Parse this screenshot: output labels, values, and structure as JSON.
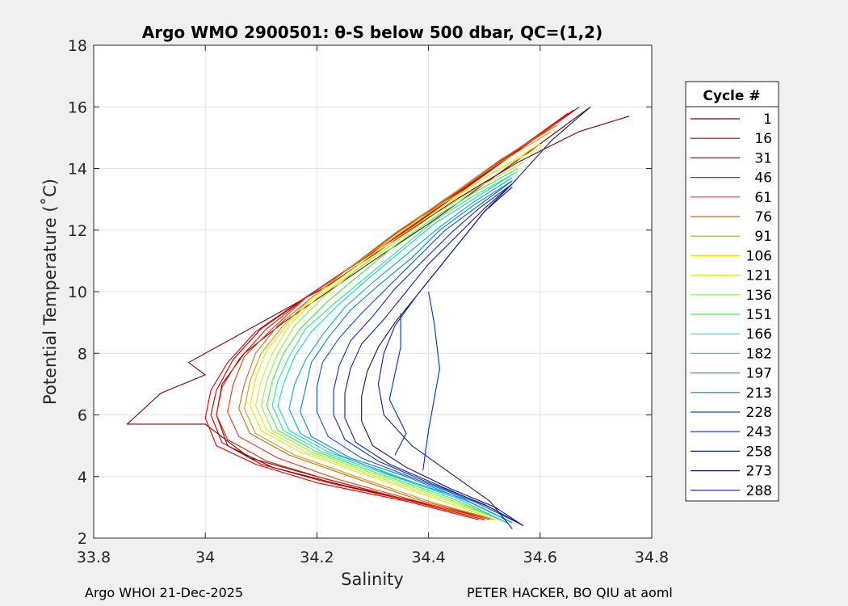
{
  "chart_data": {
    "type": "line",
    "title": "Argo WMO 2900501: θ-S below 500 dbar,  QC=(1,2)",
    "xlabel": "Salinity",
    "ylabel": "Potential Temperature (˚C)",
    "xlim": [
      33.8,
      34.8
    ],
    "ylim": [
      2,
      18
    ],
    "xticks": [
      "33.8",
      "34",
      "34.2",
      "34.4",
      "34.6",
      "34.8"
    ],
    "yticks": [
      "2",
      "4",
      "6",
      "8",
      "10",
      "12",
      "14",
      "16",
      "18"
    ],
    "grid": true,
    "legend": {
      "title": "Cycle #",
      "placement": "outside-right",
      "entries": [
        {
          "label": "1",
          "color": "#7f0000"
        },
        {
          "label": "16",
          "color": "#b00000"
        },
        {
          "label": "31",
          "color": "#d40000"
        },
        {
          "label": "46",
          "color": "#e41a0a"
        },
        {
          "label": "61",
          "color": "#e03c1a"
        },
        {
          "label": "76",
          "color": "#cc6a1a"
        },
        {
          "label": "91",
          "color": "#c8a010"
        },
        {
          "label": "106",
          "color": "#f2e400"
        },
        {
          "label": "121",
          "color": "#c8ee30"
        },
        {
          "label": "136",
          "color": "#8ef040"
        },
        {
          "label": "151",
          "color": "#40f040"
        },
        {
          "label": "166",
          "color": "#30e0a0"
        },
        {
          "label": "182",
          "color": "#20d0d0"
        },
        {
          "label": "197",
          "color": "#10a8d8"
        },
        {
          "label": "213",
          "color": "#1080c0"
        },
        {
          "label": "228",
          "color": "#1050d0"
        },
        {
          "label": "243",
          "color": "#1030b8"
        },
        {
          "label": "258",
          "color": "#102090"
        },
        {
          "label": "273",
          "color": "#101860"
        },
        {
          "label": "288",
          "color": "#102080"
        }
      ]
    },
    "series": [
      {
        "color": "#7f0000",
        "x": [
          34.69,
          34.6,
          34.5,
          34.4,
          34.3,
          34.22,
          34.14,
          34.07,
          34.03,
          34.02,
          34.04,
          34.12,
          34.25,
          34.4,
          34.52
        ],
        "y": [
          16.0,
          14.8,
          13.5,
          12.2,
          11.0,
          10.0,
          9.0,
          8.0,
          7.0,
          6.0,
          5.0,
          4.3,
          3.7,
          3.1,
          2.6
        ]
      },
      {
        "color": "#7f0000",
        "x": [
          34.76,
          34.67,
          34.56,
          34.45,
          34.35,
          34.22,
          33.97,
          34.0,
          33.92,
          33.86,
          34.0,
          34.08,
          34.2,
          34.35,
          34.5
        ],
        "y": [
          15.7,
          15.2,
          14.2,
          13.0,
          11.8,
          10.2,
          7.7,
          7.3,
          6.7,
          5.7,
          5.7,
          4.6,
          4.0,
          3.3,
          2.6
        ]
      },
      {
        "color": "#b00000",
        "x": [
          34.67,
          34.57,
          34.47,
          34.37,
          34.27,
          34.18,
          34.1,
          34.05,
          34.02,
          34.01,
          34.03,
          34.1,
          34.22,
          34.37,
          34.5
        ],
        "y": [
          16.0,
          14.7,
          13.4,
          12.1,
          10.9,
          9.8,
          8.8,
          7.8,
          6.8,
          6.0,
          5.1,
          4.4,
          3.8,
          3.2,
          2.6
        ]
      },
      {
        "color": "#d40000",
        "x": [
          34.66,
          34.56,
          34.46,
          34.36,
          34.26,
          34.17,
          34.09,
          34.04,
          34.01,
          34.0,
          34.02,
          34.09,
          34.2,
          34.36,
          34.49
        ],
        "y": [
          15.9,
          14.6,
          13.3,
          12.0,
          10.8,
          9.7,
          8.7,
          7.7,
          6.8,
          5.9,
          5.0,
          4.4,
          3.8,
          3.2,
          2.6
        ]
      },
      {
        "color": "#e41a0a",
        "x": [
          34.65,
          34.55,
          34.45,
          34.35,
          34.26,
          34.18,
          34.11,
          34.06,
          34.03,
          34.02,
          34.04,
          34.11,
          34.22,
          34.37,
          34.5
        ],
        "y": [
          15.8,
          14.5,
          13.2,
          12.0,
          10.8,
          9.8,
          8.8,
          7.8,
          6.9,
          6.0,
          5.2,
          4.5,
          3.9,
          3.2,
          2.6
        ]
      },
      {
        "color": "#e03c1a",
        "x": [
          34.64,
          34.54,
          34.44,
          34.35,
          34.26,
          34.18,
          34.12,
          34.07,
          34.05,
          34.04,
          34.06,
          34.13,
          34.24,
          34.38,
          34.51
        ],
        "y": [
          15.6,
          14.4,
          13.1,
          11.9,
          10.8,
          9.8,
          8.8,
          7.9,
          7.0,
          6.1,
          5.3,
          4.6,
          3.9,
          3.2,
          2.6
        ]
      },
      {
        "color": "#cc6a1a",
        "x": [
          34.63,
          34.53,
          34.43,
          34.34,
          34.26,
          34.19,
          34.13,
          34.09,
          34.07,
          34.06,
          34.08,
          34.15,
          34.26,
          34.39,
          34.52
        ],
        "y": [
          15.4,
          14.3,
          13.0,
          11.9,
          10.8,
          9.8,
          8.9,
          8.0,
          7.0,
          6.2,
          5.4,
          4.7,
          4.0,
          3.2,
          2.6
        ]
      },
      {
        "color": "#c8a010",
        "x": [
          34.62,
          34.52,
          34.42,
          34.34,
          34.26,
          34.19,
          34.14,
          34.1,
          34.08,
          34.07,
          34.09,
          34.16,
          34.27,
          34.4,
          34.52
        ],
        "y": [
          15.2,
          14.1,
          12.9,
          11.8,
          10.8,
          9.8,
          8.9,
          8.0,
          7.1,
          6.2,
          5.4,
          4.7,
          4.0,
          3.2,
          2.6
        ]
      },
      {
        "color": "#f2e400",
        "x": [
          34.6,
          34.51,
          34.42,
          34.34,
          34.27,
          34.2,
          34.15,
          34.11,
          34.09,
          34.08,
          34.1,
          34.17,
          34.28,
          34.41,
          34.52
        ],
        "y": [
          14.8,
          13.8,
          12.8,
          11.8,
          10.8,
          9.9,
          9.0,
          8.1,
          7.2,
          6.3,
          5.5,
          4.8,
          4.1,
          3.3,
          2.6
        ]
      },
      {
        "color": "#c8ee30",
        "x": [
          34.59,
          34.5,
          34.42,
          34.34,
          34.27,
          34.2,
          34.15,
          34.12,
          34.1,
          34.09,
          34.11,
          34.18,
          34.29,
          34.42,
          34.53
        ],
        "y": [
          14.6,
          13.7,
          12.7,
          11.7,
          10.7,
          9.8,
          8.9,
          8.0,
          7.1,
          6.3,
          5.5,
          4.8,
          4.1,
          3.3,
          2.6
        ]
      },
      {
        "color": "#8ef040",
        "x": [
          34.57,
          34.49,
          34.41,
          34.34,
          34.27,
          34.21,
          34.16,
          34.13,
          34.11,
          34.1,
          34.12,
          34.19,
          34.3,
          34.43,
          34.53
        ],
        "y": [
          14.2,
          13.4,
          12.5,
          11.6,
          10.7,
          9.8,
          8.9,
          8.0,
          7.1,
          6.3,
          5.5,
          4.8,
          4.1,
          3.3,
          2.6
        ]
      },
      {
        "color": "#40f040",
        "x": [
          34.56,
          34.48,
          34.41,
          34.34,
          34.28,
          34.22,
          34.17,
          34.14,
          34.12,
          34.11,
          34.13,
          34.2,
          34.31,
          34.44,
          34.54
        ],
        "y": [
          14.0,
          13.2,
          12.4,
          11.5,
          10.6,
          9.7,
          8.8,
          8.0,
          7.1,
          6.3,
          5.5,
          4.8,
          4.1,
          3.3,
          2.5
        ]
      },
      {
        "color": "#30e0a0",
        "x": [
          34.56,
          34.48,
          34.41,
          34.35,
          34.29,
          34.23,
          34.18,
          34.15,
          34.13,
          34.12,
          34.14,
          34.21,
          34.32,
          34.45,
          34.54
        ],
        "y": [
          13.9,
          13.1,
          12.3,
          11.4,
          10.5,
          9.6,
          8.8,
          7.9,
          7.1,
          6.3,
          5.5,
          4.8,
          4.1,
          3.3,
          2.5
        ]
      },
      {
        "color": "#20d0d0",
        "x": [
          34.55,
          34.48,
          34.41,
          34.35,
          34.29,
          34.24,
          34.19,
          34.16,
          34.14,
          34.13,
          34.15,
          34.22,
          34.33,
          34.45,
          34.54
        ],
        "y": [
          13.8,
          13.0,
          12.2,
          11.3,
          10.4,
          9.6,
          8.7,
          7.9,
          7.0,
          6.3,
          5.5,
          4.8,
          4.1,
          3.3,
          2.5
        ]
      },
      {
        "color": "#10a8d8",
        "x": [
          34.55,
          34.48,
          34.42,
          34.36,
          34.3,
          34.25,
          34.21,
          34.18,
          34.16,
          34.15,
          34.17,
          34.24,
          34.34,
          34.46,
          34.55
        ],
        "y": [
          13.7,
          12.9,
          12.1,
          11.2,
          10.3,
          9.5,
          8.6,
          7.8,
          7.0,
          6.2,
          5.4,
          4.7,
          4.0,
          3.3,
          2.5
        ]
      },
      {
        "color": "#1080c0",
        "x": [
          34.55,
          34.48,
          34.42,
          34.37,
          34.31,
          34.26,
          34.22,
          34.19,
          34.18,
          34.17,
          34.19,
          34.26,
          34.36,
          34.47,
          34.55
        ],
        "y": [
          13.6,
          12.8,
          12.0,
          11.1,
          10.2,
          9.4,
          8.5,
          7.7,
          6.9,
          6.1,
          5.3,
          4.6,
          4.0,
          3.2,
          2.5
        ]
      },
      {
        "color": "#1050d0",
        "x": [
          34.55,
          34.49,
          34.43,
          34.38,
          34.33,
          34.28,
          34.24,
          34.21,
          34.2,
          34.2,
          34.22,
          34.28,
          34.38,
          34.48,
          34.56
        ],
        "y": [
          13.6,
          12.8,
          12.0,
          11.1,
          10.2,
          9.3,
          8.5,
          7.7,
          6.9,
          6.1,
          5.3,
          4.6,
          3.9,
          3.2,
          2.5
        ]
      },
      {
        "color": "#1030b8",
        "x": [
          34.55,
          34.49,
          34.44,
          34.39,
          34.34,
          34.3,
          34.26,
          34.24,
          34.23,
          34.23,
          34.25,
          34.31,
          34.4,
          34.5,
          34.56
        ],
        "y": [
          13.5,
          12.7,
          11.9,
          11.0,
          10.1,
          9.2,
          8.4,
          7.6,
          6.8,
          6.0,
          5.2,
          4.5,
          3.8,
          3.1,
          2.5
        ]
      },
      {
        "color": "#102090",
        "x": [
          34.55,
          34.5,
          34.45,
          34.4,
          34.36,
          34.32,
          34.28,
          34.26,
          34.25,
          34.25,
          34.27,
          34.33,
          34.42,
          34.51,
          34.57
        ],
        "y": [
          13.5,
          12.7,
          11.8,
          10.9,
          10.0,
          9.1,
          8.3,
          7.5,
          6.7,
          5.9,
          5.1,
          4.4,
          3.7,
          3.0,
          2.4
        ]
      },
      {
        "color": "#101860",
        "x": [
          34.55,
          34.5,
          34.46,
          34.42,
          34.38,
          34.34,
          34.31,
          34.29,
          34.28,
          34.28,
          34.3,
          34.36,
          34.44,
          34.52,
          34.57
        ],
        "y": [
          13.4,
          12.6,
          11.7,
          10.8,
          9.9,
          9.0,
          8.2,
          7.4,
          6.6,
          5.8,
          5.0,
          4.3,
          3.6,
          3.0,
          2.4
        ]
      },
      {
        "color": "#102080",
        "x": [
          34.69,
          34.62,
          34.55,
          34.5,
          34.46,
          34.42,
          34.38,
          34.34,
          34.32,
          34.31,
          34.32,
          34.37,
          34.44,
          34.51,
          34.55
        ],
        "y": [
          16.0,
          14.9,
          13.5,
          12.6,
          11.7,
          10.8,
          9.9,
          8.9,
          8.0,
          7.0,
          6.0,
          5.0,
          4.1,
          3.2,
          2.3
        ]
      },
      {
        "color": "#0030c0",
        "x": [
          34.4,
          34.41,
          34.42,
          34.4,
          34.39
        ],
        "y": [
          10.0,
          9.0,
          7.5,
          5.5,
          4.2
        ]
      },
      {
        "color": "#0030c0",
        "x": [
          34.35,
          34.35,
          34.33,
          34.36,
          34.34
        ],
        "y": [
          9.3,
          8.2,
          6.5,
          5.4,
          4.7
        ]
      }
    ]
  },
  "footer": {
    "left": "Argo WHOI 21-Dec-2025",
    "right": "PETER HACKER, BO QIU at aoml"
  }
}
